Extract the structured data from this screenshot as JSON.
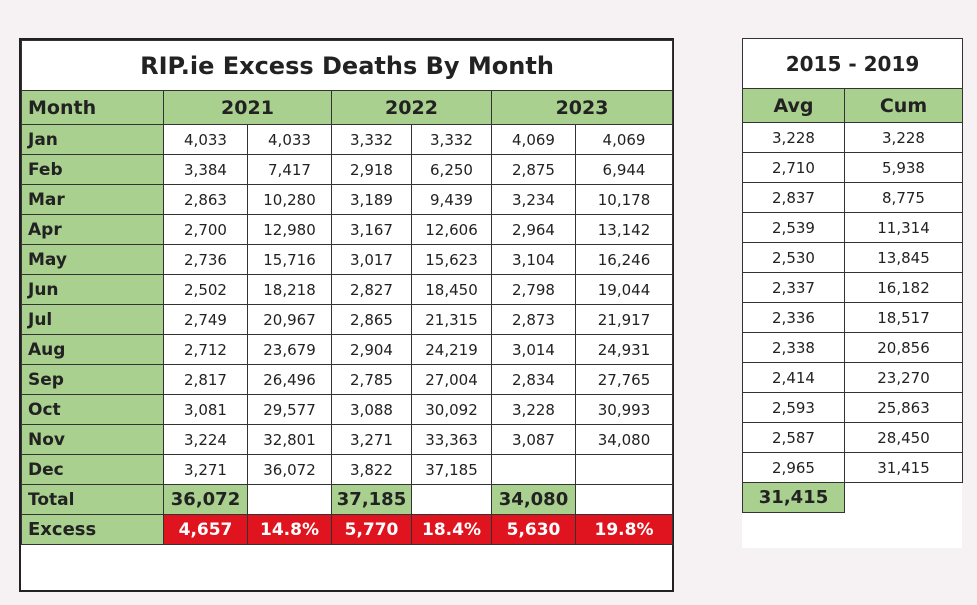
{
  "main": {
    "title": "RIP.ie Excess Deaths By Month",
    "month_header": "Month",
    "years": [
      "2021",
      "2022",
      "2023"
    ],
    "rows": [
      {
        "month": "Jan",
        "values": [
          "4,033",
          "4,033",
          "3,332",
          "3,332",
          "4,069",
          "4,069"
        ]
      },
      {
        "month": "Feb",
        "values": [
          "3,384",
          "7,417",
          "2,918",
          "6,250",
          "2,875",
          "6,944"
        ]
      },
      {
        "month": "Mar",
        "values": [
          "2,863",
          "10,280",
          "3,189",
          "9,439",
          "3,234",
          "10,178"
        ]
      },
      {
        "month": "Apr",
        "values": [
          "2,700",
          "12,980",
          "3,167",
          "12,606",
          "2,964",
          "13,142"
        ]
      },
      {
        "month": "May",
        "values": [
          "2,736",
          "15,716",
          "3,017",
          "15,623",
          "3,104",
          "16,246"
        ]
      },
      {
        "month": "Jun",
        "values": [
          "2,502",
          "18,218",
          "2,827",
          "18,450",
          "2,798",
          "19,044"
        ]
      },
      {
        "month": "Jul",
        "values": [
          "2,749",
          "20,967",
          "2,865",
          "21,315",
          "2,873",
          "21,917"
        ]
      },
      {
        "month": "Aug",
        "values": [
          "2,712",
          "23,679",
          "2,904",
          "24,219",
          "3,014",
          "24,931"
        ]
      },
      {
        "month": "Sep",
        "values": [
          "2,817",
          "26,496",
          "2,785",
          "27,004",
          "2,834",
          "27,765"
        ]
      },
      {
        "month": "Oct",
        "values": [
          "3,081",
          "29,577",
          "3,088",
          "30,092",
          "3,228",
          "30,993"
        ]
      },
      {
        "month": "Nov",
        "values": [
          "3,224",
          "32,801",
          "3,271",
          "33,363",
          "3,087",
          "34,080"
        ]
      },
      {
        "month": "Dec",
        "values": [
          "3,271",
          "36,072",
          "3,822",
          "37,185",
          "",
          ""
        ]
      }
    ],
    "total_label": "Total",
    "totals": [
      "36,072",
      "37,185",
      "34,080"
    ],
    "excess_label": "Excess",
    "excess": [
      {
        "count": "4,657",
        "pct": "14.8%"
      },
      {
        "count": "5,770",
        "pct": "18.4%"
      },
      {
        "count": "5,630",
        "pct": "19.8%"
      }
    ]
  },
  "side": {
    "title": "2015 - 2019",
    "headers": [
      "Avg",
      "Cum"
    ],
    "rows": [
      [
        "3,228",
        "3,228"
      ],
      [
        "2,710",
        "5,938"
      ],
      [
        "2,837",
        "8,775"
      ],
      [
        "2,539",
        "11,314"
      ],
      [
        "2,530",
        "13,845"
      ],
      [
        "2,337",
        "16,182"
      ],
      [
        "2,336",
        "18,517"
      ],
      [
        "2,338",
        "20,856"
      ],
      [
        "2,414",
        "23,270"
      ],
      [
        "2,593",
        "25,863"
      ],
      [
        "2,587",
        "28,450"
      ],
      [
        "2,965",
        "31,415"
      ]
    ],
    "total": "31,415"
  },
  "colors": {
    "header_green": "#a9d08e",
    "excess_red": "#e0141e",
    "background": "#f6f1f2"
  }
}
